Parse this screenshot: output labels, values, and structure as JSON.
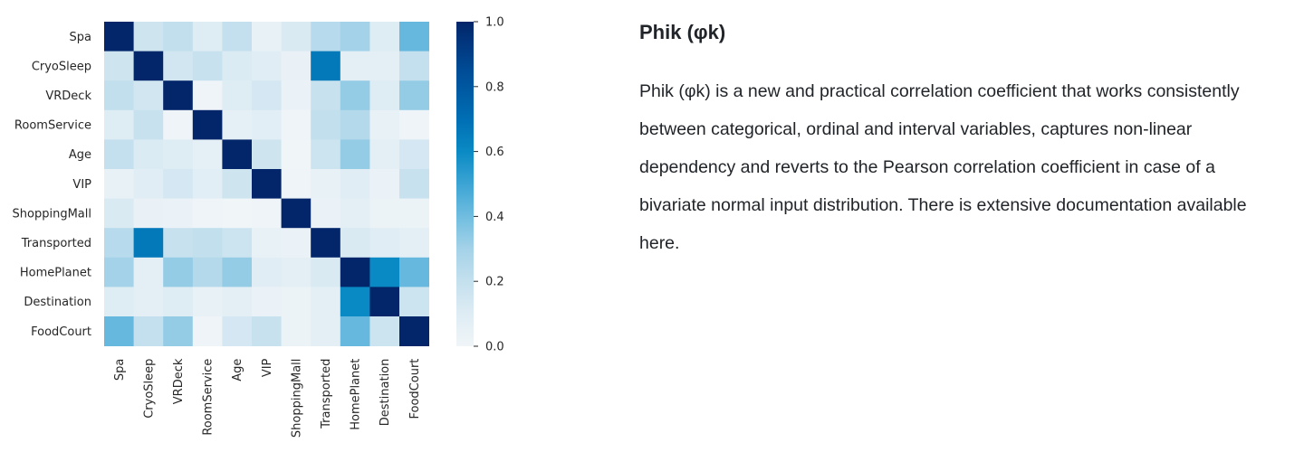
{
  "panel": {
    "title": "Phik (φk)",
    "description": "Phik (φk) is a new and practical correlation coefficient that works consistently between categorical, ordinal and interval variables, captures non-linear dependency and reverts to the Pearson correlation coefficient in case of a bivariate normal input distribution. There is extensive documentation available here."
  },
  "chart_data": {
    "type": "heatmap",
    "rows": [
      "Spa",
      "CryoSleep",
      "VRDeck",
      "RoomService",
      "Age",
      "VIP",
      "ShoppingMall",
      "Transported",
      "HomePlanet",
      "Destination",
      "FoodCourt"
    ],
    "columns": [
      "Spa",
      "CryoSleep",
      "VRDeck",
      "RoomService",
      "Age",
      "VIP",
      "ShoppingMall",
      "Transported",
      "HomePlanet",
      "Destination",
      "FoodCourt"
    ],
    "values": [
      [
        1.0,
        0.16,
        0.21,
        0.1,
        0.2,
        0.05,
        0.12,
        0.24,
        0.3,
        0.1,
        0.42
      ],
      [
        0.16,
        1.0,
        0.15,
        0.19,
        0.11,
        0.09,
        0.04,
        0.66,
        0.07,
        0.07,
        0.2
      ],
      [
        0.21,
        0.15,
        1.0,
        0.01,
        0.1,
        0.14,
        0.03,
        0.19,
        0.33,
        0.1,
        0.33
      ],
      [
        0.1,
        0.19,
        0.01,
        1.0,
        0.06,
        0.08,
        0.01,
        0.21,
        0.25,
        0.05,
        0.01
      ],
      [
        0.2,
        0.11,
        0.1,
        0.06,
        1.0,
        0.16,
        0.0,
        0.17,
        0.33,
        0.07,
        0.14
      ],
      [
        0.05,
        0.09,
        0.14,
        0.08,
        0.16,
        1.0,
        0.01,
        0.05,
        0.09,
        0.03,
        0.19
      ],
      [
        0.12,
        0.04,
        0.03,
        0.01,
        0.0,
        0.01,
        1.0,
        0.03,
        0.07,
        0.02,
        0.02
      ],
      [
        0.24,
        0.66,
        0.19,
        0.21,
        0.17,
        0.05,
        0.03,
        1.0,
        0.12,
        0.09,
        0.07
      ],
      [
        0.3,
        0.07,
        0.33,
        0.25,
        0.33,
        0.09,
        0.07,
        0.12,
        1.0,
        0.6,
        0.42
      ],
      [
        0.1,
        0.07,
        0.1,
        0.05,
        0.07,
        0.03,
        0.02,
        0.07,
        0.6,
        1.0,
        0.17
      ],
      [
        0.42,
        0.2,
        0.33,
        0.01,
        0.14,
        0.19,
        0.02,
        0.07,
        0.42,
        0.17,
        1.0
      ]
    ],
    "colormap": "Blues",
    "colorbar": {
      "range": [
        0.0,
        1.0
      ],
      "ticks": [
        "0.0",
        "0.2",
        "0.4",
        "0.6",
        "0.8",
        "1.0"
      ]
    }
  }
}
